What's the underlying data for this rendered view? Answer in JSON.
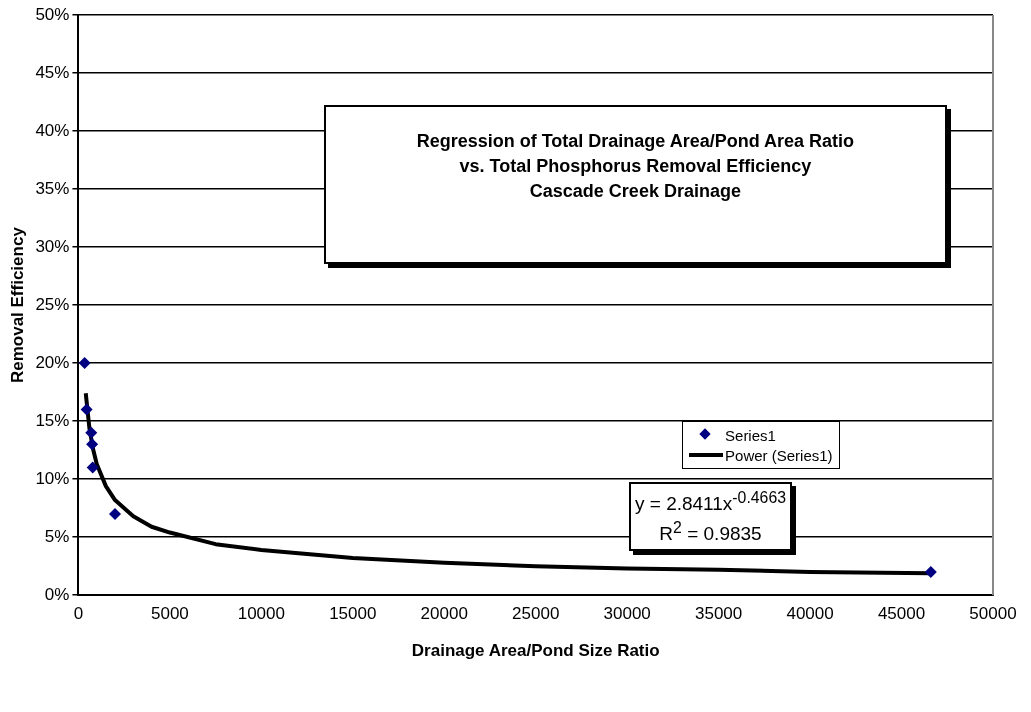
{
  "chart_data": {
    "type": "scatter",
    "title": "Regression of Total Drainage Area/Pond Area Ratio\nvs. Total Phosphorus Removal Efficiency\nCascade Creek Drainage",
    "xlabel": "Drainage Area/Pond Size Ratio",
    "ylabel": "Removal Efficiency",
    "xlim": [
      0,
      50000
    ],
    "xticks": [
      0,
      5000,
      10000,
      15000,
      20000,
      25000,
      30000,
      35000,
      40000,
      45000,
      50000
    ],
    "ylim": [
      0,
      50
    ],
    "yticks": [
      {
        "value": 0,
        "label": "0%"
      },
      {
        "value": 5,
        "label": "5%"
      },
      {
        "value": 10,
        "label": "10%"
      },
      {
        "value": 15,
        "label": "15%"
      },
      {
        "value": 20,
        "label": "20%"
      },
      {
        "value": 25,
        "label": "25%"
      },
      {
        "value": 30,
        "label": "30%"
      },
      {
        "value": 35,
        "label": "35%"
      },
      {
        "value": 40,
        "label": "40%"
      },
      {
        "value": 45,
        "label": "45%"
      },
      {
        "value": 50,
        "label": "50%"
      }
    ],
    "grid": "y",
    "legend": "right",
    "annotations": [
      "y = 2.8411x$^{-0.4663}$\nR$^{2}$ = 0.9835"
    ],
    "series": [
      {
        "name": "Series1",
        "type": "scatter",
        "marker": "diamond",
        "color": "#000080",
        "x": [
          340,
          450,
          700,
          750,
          780,
          2000,
          46600
        ],
        "values": [
          20,
          16,
          14,
          13,
          11,
          7,
          2
        ]
      },
      {
        "name": "Power (Series1)",
        "type": "line",
        "marker": "none",
        "color": "#000000",
        "x": [
          400,
          600,
          800,
          1000,
          1500,
          2000,
          3000,
          4000,
          5000,
          7500,
          10000,
          15000,
          20000,
          25000,
          30000,
          35000,
          40000,
          46600
        ],
        "values": [
          17.4,
          14.4,
          12.6,
          11.3,
          9.4,
          8.2,
          6.8,
          5.9,
          5.4,
          4.4,
          3.9,
          3.2,
          2.8,
          2.5,
          2.3,
          2.2,
          2.0,
          1.9
        ]
      }
    ]
  }
}
